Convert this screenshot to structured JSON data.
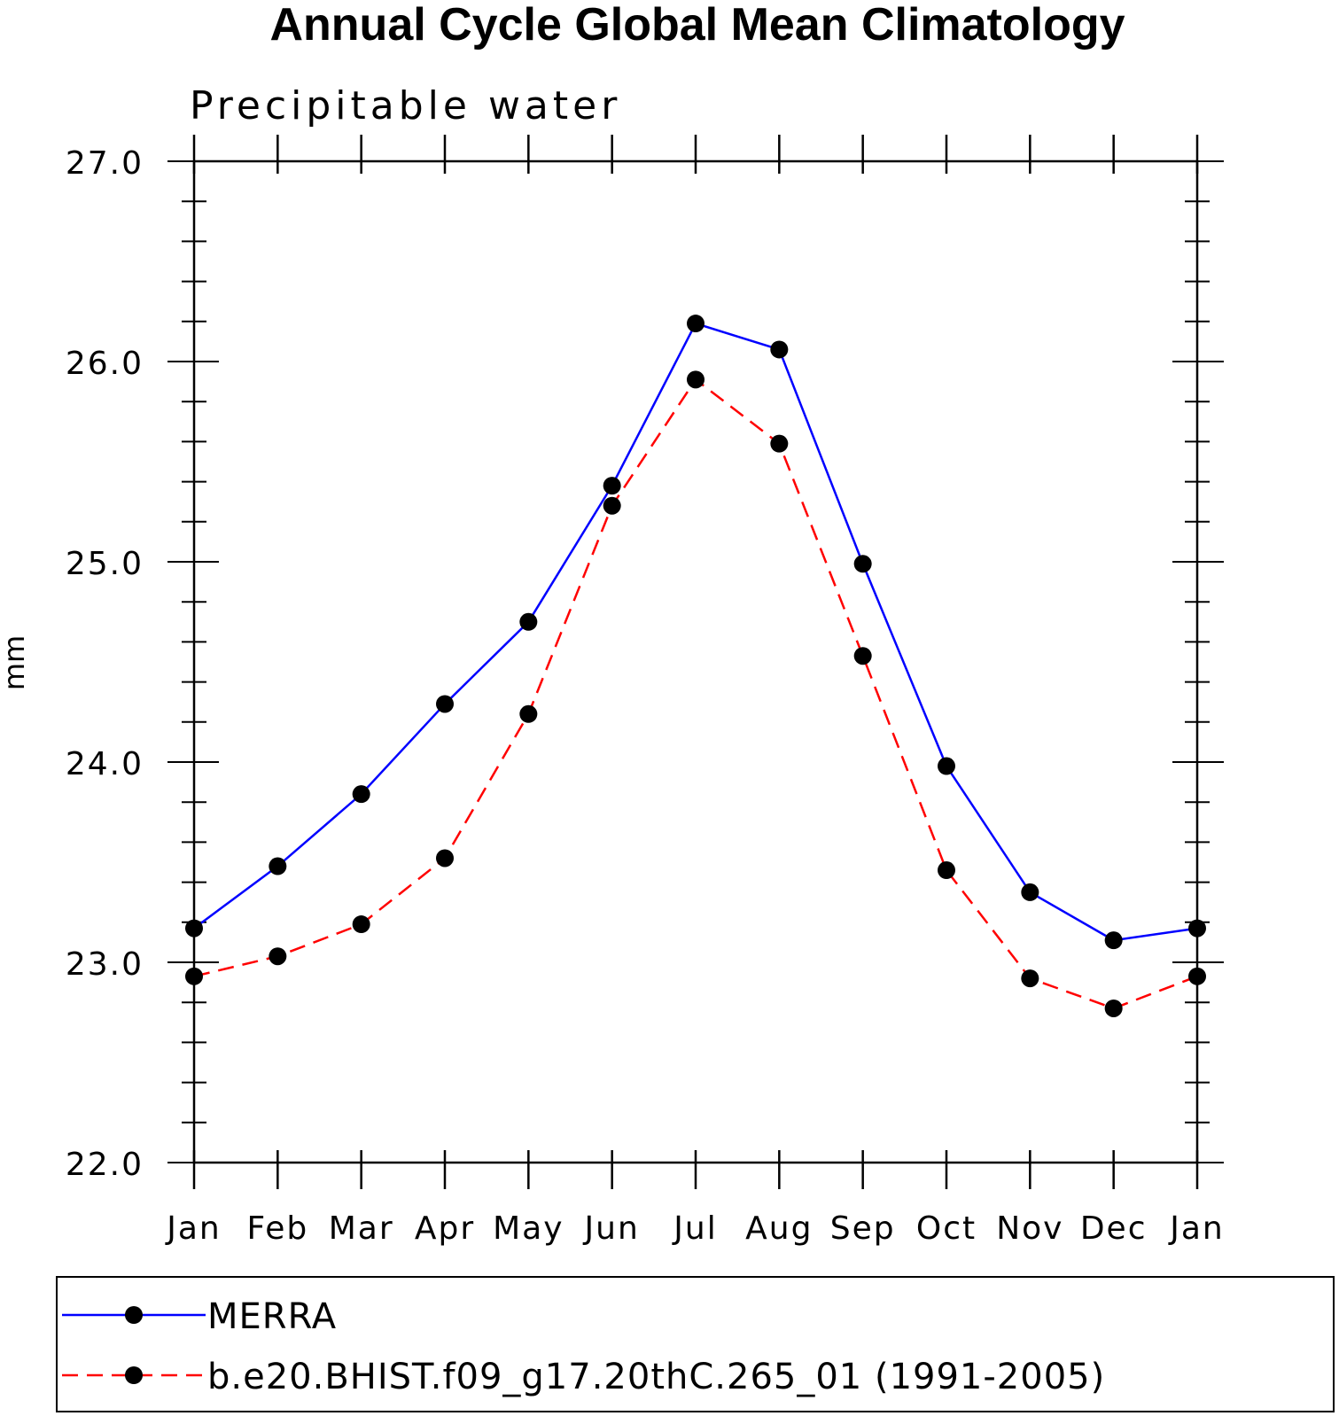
{
  "chart_data": {
    "type": "line",
    "title": "Annual Cycle Global Mean Climatology",
    "subtitle": "Precipitable water",
    "xlabel": "",
    "ylabel": "mm",
    "categories": [
      "Jan",
      "Feb",
      "Mar",
      "Apr",
      "May",
      "Jun",
      "Jul",
      "Aug",
      "Sep",
      "Oct",
      "Nov",
      "Dec",
      "Jan"
    ],
    "ylim": [
      22.0,
      27.0
    ],
    "yticks": [
      22.0,
      23.0,
      24.0,
      25.0,
      26.0,
      27.0
    ],
    "ytick_labels": [
      "22.0",
      "23.0",
      "24.0",
      "25.0",
      "26.0",
      "27.0"
    ],
    "grid": false,
    "legend_position": "bottom",
    "series": [
      {
        "name": "MERRA",
        "color": "#0000ff",
        "style": "solid",
        "marker": "filled-circle",
        "values": [
          23.17,
          23.48,
          23.84,
          24.29,
          24.7,
          25.38,
          26.19,
          26.06,
          24.99,
          23.98,
          23.35,
          23.11,
          23.17
        ]
      },
      {
        "name": "b.e20.BHIST.f09_g17.20thC.265_01 (1991-2005)",
        "color": "#ff0000",
        "style": "dashed",
        "marker": "filled-circle",
        "values": [
          22.93,
          23.03,
          23.19,
          23.52,
          24.24,
          25.28,
          25.91,
          25.59,
          24.53,
          23.46,
          22.92,
          22.77,
          22.93
        ]
      }
    ]
  }
}
